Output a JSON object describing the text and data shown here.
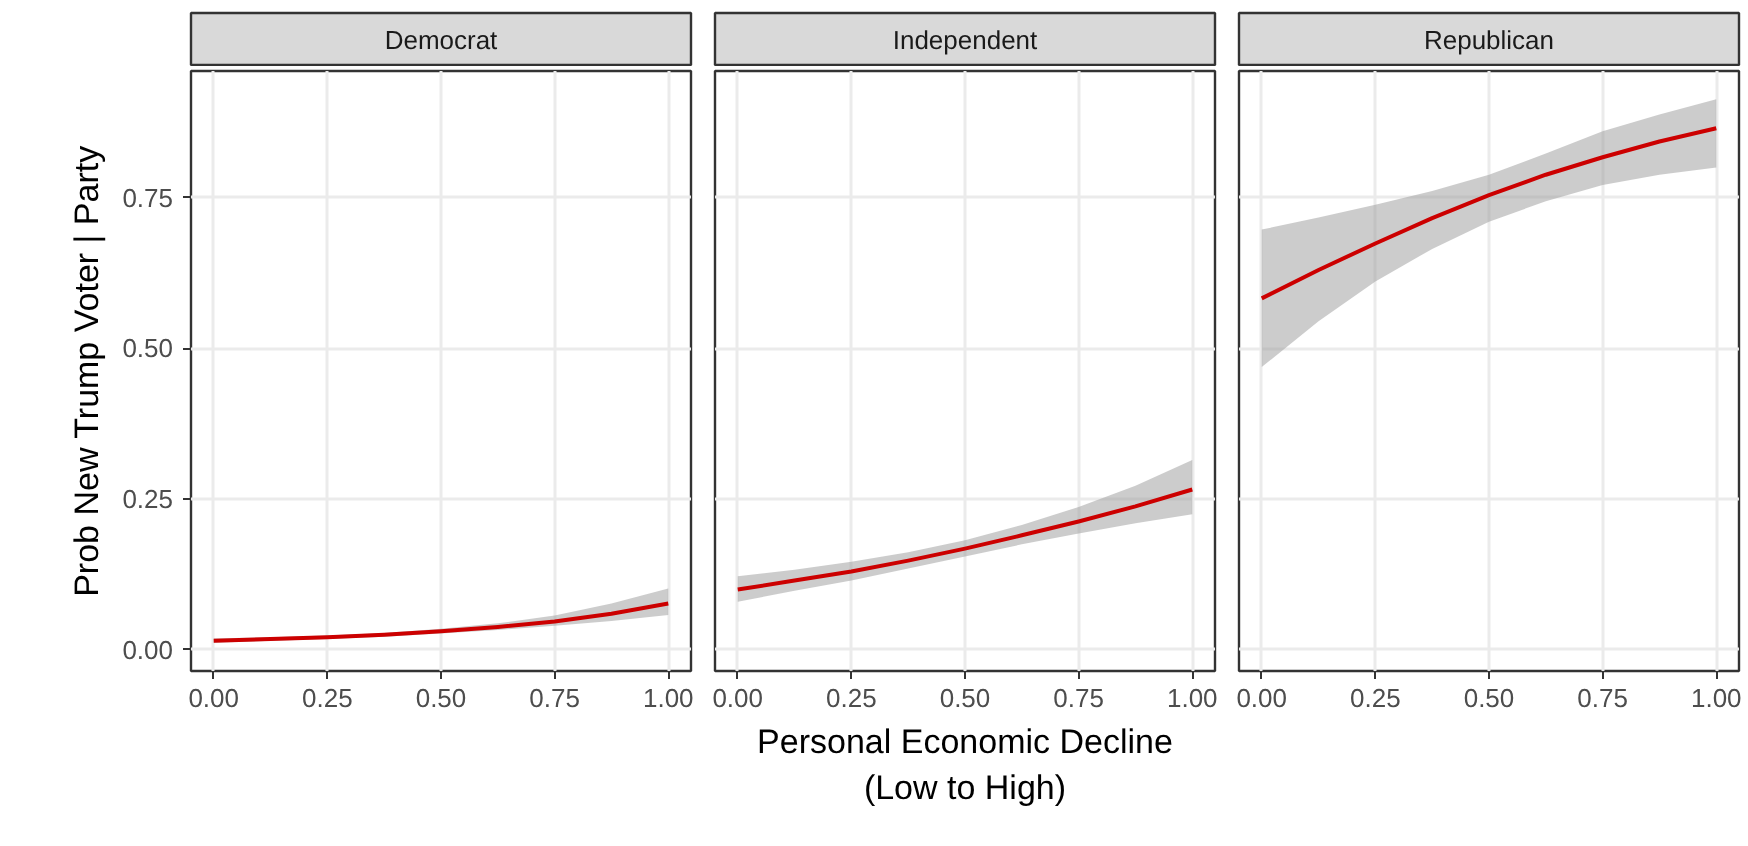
{
  "chart_data": [
    {
      "type": "line",
      "title": "Democrat",
      "ylabel": "Prob New Trump Voter | Party",
      "x": [
        0,
        0.125,
        0.25,
        0.375,
        0.5,
        0.625,
        0.75,
        0.875,
        1
      ],
      "xlim": [
        -0.05,
        1.05
      ],
      "ylim": [
        -0.035,
        0.96
      ],
      "xticks": [
        {
          "value": 0,
          "label": "0.00"
        },
        {
          "value": 0.25,
          "label": "0.25"
        },
        {
          "value": 0.5,
          "label": "0.50"
        },
        {
          "value": 0.75,
          "label": "0.75"
        },
        {
          "value": 1,
          "label": "1.00"
        }
      ],
      "yticks": [
        {
          "value": 0,
          "label": "0.00"
        },
        {
          "value": 0.25,
          "label": "0.25"
        },
        {
          "value": 0.5,
          "label": "0.50"
        },
        {
          "value": 0.75,
          "label": "0.75"
        }
      ],
      "grid": true,
      "series": [
        {
          "color": "#cc0000",
          "values": [
            0.015,
            0.018,
            0.021,
            0.025,
            0.031,
            0.038,
            0.047,
            0.06,
            0.077
          ],
          "lower": [
            0.012,
            0.015,
            0.018,
            0.022,
            0.027,
            0.033,
            0.04,
            0.048,
            0.058
          ],
          "upper": [
            0.019,
            0.021,
            0.024,
            0.028,
            0.035,
            0.044,
            0.057,
            0.077,
            0.102
          ]
        }
      ]
    },
    {
      "type": "line",
      "title": "Independent",
      "xlabel": "Personal Economic Decline\n(Low to High)",
      "x": [
        0,
        0.125,
        0.25,
        0.375,
        0.5,
        0.625,
        0.75,
        0.875,
        1
      ],
      "xlim": [
        -0.05,
        1.05
      ],
      "ylim": [
        -0.035,
        0.96
      ],
      "xticks": [
        {
          "value": 0,
          "label": "0.00"
        },
        {
          "value": 0.25,
          "label": "0.25"
        },
        {
          "value": 0.5,
          "label": "0.50"
        },
        {
          "value": 0.75,
          "label": "0.75"
        },
        {
          "value": 1,
          "label": "1.00"
        }
      ],
      "yticks": [
        {
          "value": 0,
          "label": null
        },
        {
          "value": 0.25,
          "label": null
        },
        {
          "value": 0.5,
          "label": null
        },
        {
          "value": 0.75,
          "label": null
        }
      ],
      "grid": true,
      "tick_labels": "x",
      "series": [
        {
          "color": "#cc0000",
          "values": [
            0.1,
            0.115,
            0.13,
            0.148,
            0.168,
            0.19,
            0.213,
            0.238,
            0.266
          ],
          "lower": [
            0.08,
            0.098,
            0.115,
            0.135,
            0.155,
            0.175,
            0.193,
            0.21,
            0.225
          ],
          "upper": [
            0.122,
            0.133,
            0.146,
            0.162,
            0.182,
            0.207,
            0.237,
            0.272,
            0.315
          ]
        }
      ]
    },
    {
      "type": "line",
      "title": "Republican",
      "x": [
        0,
        0.125,
        0.25,
        0.375,
        0.5,
        0.625,
        0.75,
        0.875,
        1
      ],
      "xlim": [
        -0.05,
        1.05
      ],
      "ylim": [
        -0.035,
        0.96
      ],
      "xticks": [
        {
          "value": 0,
          "label": "0.00"
        },
        {
          "value": 0.25,
          "label": "0.25"
        },
        {
          "value": 0.5,
          "label": "0.50"
        },
        {
          "value": 0.75,
          "label": "0.75"
        },
        {
          "value": 1,
          "label": "1.00"
        }
      ],
      "yticks": [
        {
          "value": 0,
          "label": null
        },
        {
          "value": 0.25,
          "label": null
        },
        {
          "value": 0.5,
          "label": null
        },
        {
          "value": 0.75,
          "label": null
        }
      ],
      "grid": true,
      "tick_labels": "x",
      "series": [
        {
          "color": "#cc0000",
          "values": [
            0.583,
            0.63,
            0.674,
            0.716,
            0.754,
            0.788,
            0.817,
            0.843,
            0.865
          ],
          "lower": [
            0.469,
            0.545,
            0.611,
            0.665,
            0.71,
            0.744,
            0.771,
            0.788,
            0.8
          ],
          "upper": [
            0.697,
            0.717,
            0.738,
            0.761,
            0.788,
            0.823,
            0.86,
            0.888,
            0.913
          ]
        }
      ]
    }
  ]
}
